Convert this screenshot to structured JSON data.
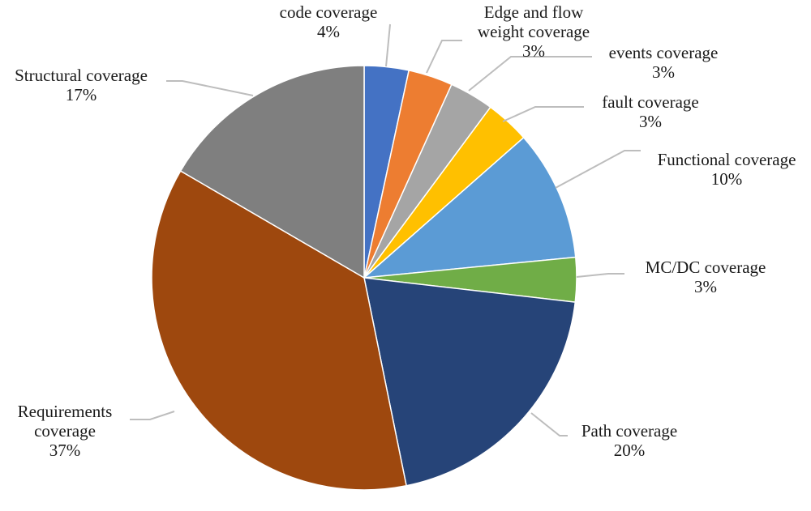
{
  "chart_data": {
    "type": "pie",
    "slices": [
      {
        "label": [
          "code coverage"
        ],
        "pct": "4%",
        "value": 3.5,
        "color": "#4472c4"
      },
      {
        "label": [
          "Edge and flow",
          "weight coverage"
        ],
        "pct": "3%",
        "value": 3.5,
        "color": "#ed7d31"
      },
      {
        "label": [
          "events coverage"
        ],
        "pct": "3%",
        "value": 3.5,
        "color": "#a5a5a5"
      },
      {
        "label": [
          "fault coverage"
        ],
        "pct": "3%",
        "value": 3.5,
        "color": "#ffc000"
      },
      {
        "label": [
          "Functional coverage"
        ],
        "pct": "10%",
        "value": 10.3,
        "color": "#5b9bd5"
      },
      {
        "label": [
          "MC/DC coverage"
        ],
        "pct": "3%",
        "value": 3.5,
        "color": "#70ad47"
      },
      {
        "label": [
          "Path coverage"
        ],
        "pct": "20%",
        "value": 20.7,
        "color": "#264478"
      },
      {
        "label": [
          "Requirements",
          "coverage"
        ],
        "pct": "37%",
        "value": 37.9,
        "color": "#9e480e"
      },
      {
        "label": [
          "Structural coverage"
        ],
        "pct": "17%",
        "value": 17.2,
        "color": "#7f7f7f"
      }
    ]
  }
}
